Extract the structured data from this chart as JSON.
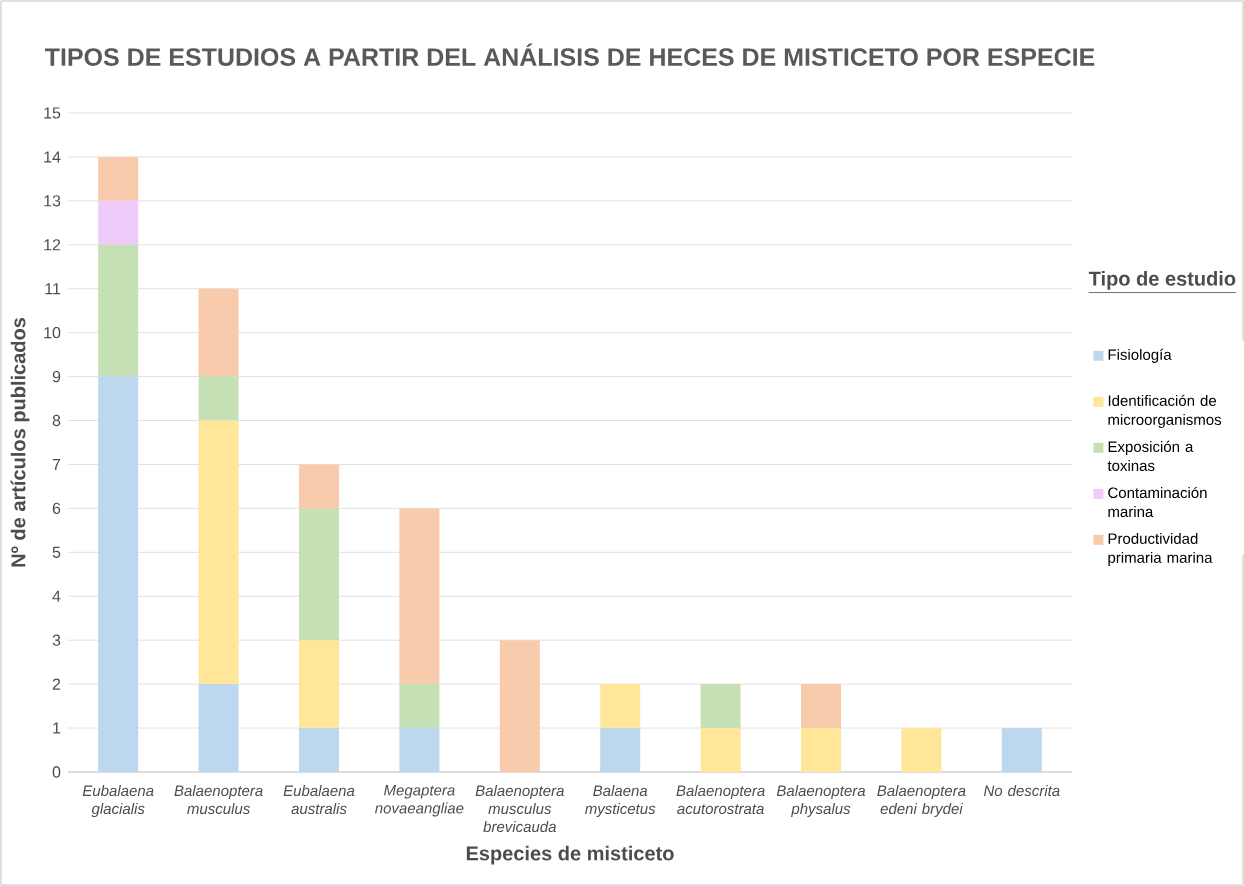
{
  "chart_data": {
    "type": "bar",
    "stacked": true,
    "title": "TIPOS DE ESTUDIOS A PARTIR DEL ANÁLISIS DE HECES DE MISTICETO POR ESPECIE",
    "xlabel": "Especies de misticeto",
    "ylabel": "Nº de artículos publicados",
    "legend_title": "Tipo de estudio",
    "legend": "right",
    "grid": "y",
    "ylim": [
      0,
      15
    ],
    "yticks": [
      0,
      1,
      2,
      3,
      4,
      5,
      6,
      7,
      8,
      9,
      10,
      11,
      12,
      13,
      14,
      15
    ],
    "categories": [
      "Eubalaena glacialis",
      "Balaenoptera musculus",
      "Eubalaena australis",
      "Megaptera novaeangliae",
      "Balaenoptera musculus brevicauda",
      "Balaena mysticetus",
      "Balaenoptera acutorostrata",
      "Balaenoptera physalus",
      "Balaenoptera edeni brydei",
      "No descrita"
    ],
    "series": [
      {
        "name": "Fisiología",
        "color": "#bdd7ee",
        "values": [
          9,
          2,
          1,
          1,
          0,
          1,
          0,
          0,
          0,
          1
        ]
      },
      {
        "name": "Identificación de microorganismos",
        "color": "#ffe699",
        "values": [
          0,
          6,
          2,
          0,
          0,
          1,
          1,
          1,
          1,
          0
        ]
      },
      {
        "name": "Exposición a toxinas",
        "color": "#c5e0b4",
        "values": [
          3,
          1,
          3,
          1,
          0,
          0,
          1,
          0,
          0,
          0
        ]
      },
      {
        "name": "Contaminación marina",
        "color": "#eecbf9",
        "values": [
          1,
          0,
          0,
          0,
          0,
          0,
          0,
          0,
          0,
          0
        ]
      },
      {
        "name": "Productividad primaria marina",
        "color": "#f8cbad",
        "values": [
          1,
          2,
          1,
          4,
          3,
          0,
          0,
          1,
          0,
          0
        ]
      }
    ]
  }
}
